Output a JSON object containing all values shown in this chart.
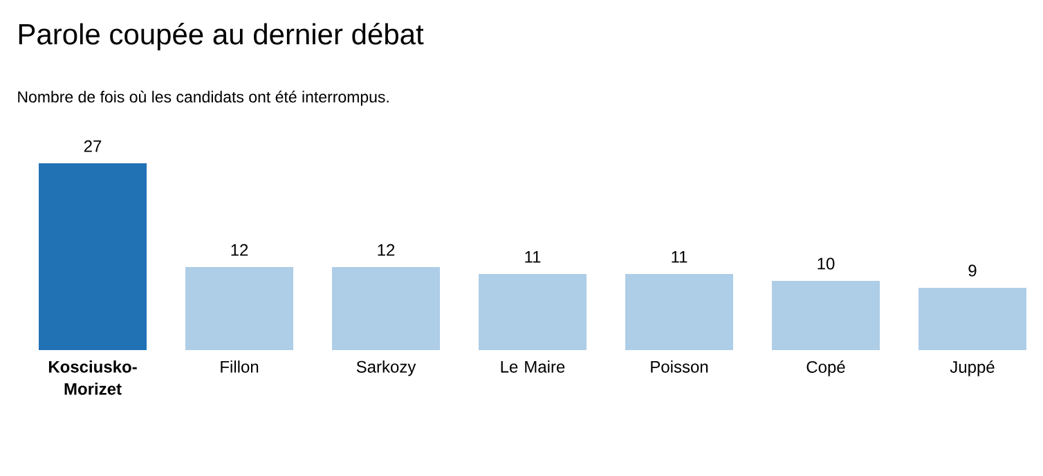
{
  "chart_data": {
    "type": "bar",
    "title": "Parole coupée au dernier débat",
    "subtitle": "Nombre de fois où les candidats ont été interrompus.",
    "categories": [
      "Kosciusko-Morizet",
      "Fillon",
      "Sarkozy",
      "Le Maire",
      "Poisson",
      "Copé",
      "Juppé"
    ],
    "values": [
      27,
      12,
      12,
      11,
      11,
      10,
      9
    ],
    "colors": [
      "#2171b5",
      "#aecde6",
      "#aecde6",
      "#aecde6",
      "#aecde6",
      "#aecde6",
      "#aecde6"
    ],
    "data_labels": true,
    "tick_labels": "x"
  }
}
